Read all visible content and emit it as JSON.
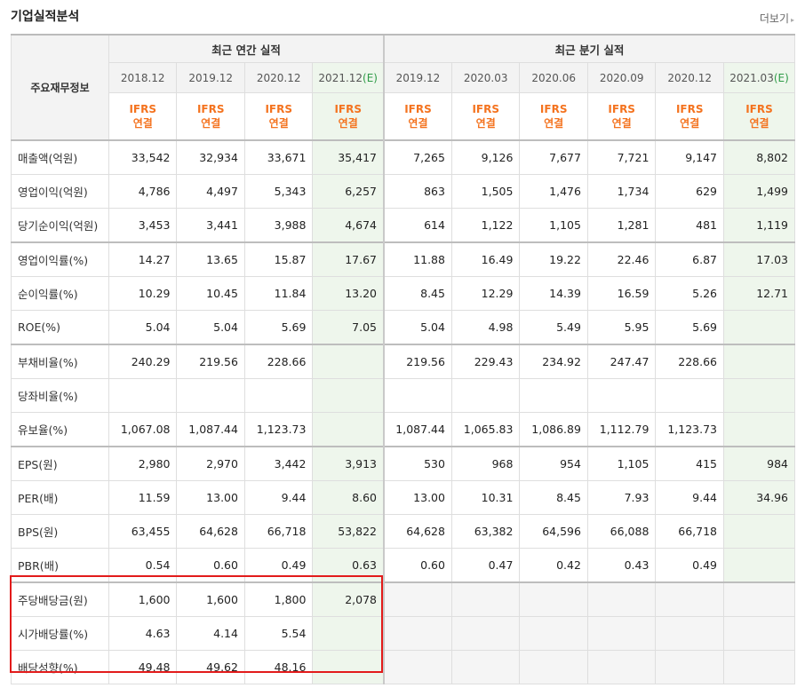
{
  "section_title": "기업실적분석",
  "more_link": "더보기",
  "more_arrow": "▸",
  "header": {
    "row_label": "주요재무정보",
    "annual_group": "최근 연간 실적",
    "quarterly_group": "최근 분기 실적",
    "annual_periods": [
      "2018.12",
      "2019.12",
      "2020.12",
      "2021.12"
    ],
    "quarterly_periods": [
      "2019.12",
      "2020.03",
      "2020.06",
      "2020.09",
      "2020.12",
      "2021.03"
    ],
    "estimate_mark": "(E)",
    "ifrs_top": "IFRS",
    "ifrs_bottom": "연결"
  },
  "rows": [
    {
      "label": "매출액(억원)",
      "annual": [
        "33,542",
        "32,934",
        "33,671",
        "35,417"
      ],
      "quarterly": [
        "7,265",
        "9,126",
        "7,677",
        "7,721",
        "9,147",
        "8,802"
      ]
    },
    {
      "label": "영업이익(억원)",
      "annual": [
        "4,786",
        "4,497",
        "5,343",
        "6,257"
      ],
      "quarterly": [
        "863",
        "1,505",
        "1,476",
        "1,734",
        "629",
        "1,499"
      ]
    },
    {
      "label": "당기순이익(억원)",
      "annual": [
        "3,453",
        "3,441",
        "3,988",
        "4,674"
      ],
      "quarterly": [
        "614",
        "1,122",
        "1,105",
        "1,281",
        "481",
        "1,119"
      ]
    },
    {
      "label": "영업이익률(%)",
      "annual": [
        "14.27",
        "13.65",
        "15.87",
        "17.67"
      ],
      "quarterly": [
        "11.88",
        "16.49",
        "19.22",
        "22.46",
        "6.87",
        "17.03"
      ]
    },
    {
      "label": "순이익률(%)",
      "annual": [
        "10.29",
        "10.45",
        "11.84",
        "13.20"
      ],
      "quarterly": [
        "8.45",
        "12.29",
        "14.39",
        "16.59",
        "5.26",
        "12.71"
      ]
    },
    {
      "label": "ROE(%)",
      "annual": [
        "5.04",
        "5.04",
        "5.69",
        "7.05"
      ],
      "quarterly": [
        "5.04",
        "4.98",
        "5.49",
        "5.95",
        "5.69",
        ""
      ]
    },
    {
      "label": "부채비율(%)",
      "annual": [
        "240.29",
        "219.56",
        "228.66",
        ""
      ],
      "quarterly": [
        "219.56",
        "229.43",
        "234.92",
        "247.47",
        "228.66",
        ""
      ]
    },
    {
      "label": "당좌비율(%)",
      "annual": [
        "",
        "",
        "",
        ""
      ],
      "quarterly": [
        "",
        "",
        "",
        "",
        "",
        ""
      ]
    },
    {
      "label": "유보율(%)",
      "annual": [
        "1,067.08",
        "1,087.44",
        "1,123.73",
        ""
      ],
      "quarterly": [
        "1,087.44",
        "1,065.83",
        "1,086.89",
        "1,112.79",
        "1,123.73",
        ""
      ]
    },
    {
      "label": "EPS(원)",
      "annual": [
        "2,980",
        "2,970",
        "3,442",
        "3,913"
      ],
      "quarterly": [
        "530",
        "968",
        "954",
        "1,105",
        "415",
        "984"
      ]
    },
    {
      "label": "PER(배)",
      "annual": [
        "11.59",
        "13.00",
        "9.44",
        "8.60"
      ],
      "quarterly": [
        "13.00",
        "10.31",
        "8.45",
        "7.93",
        "9.44",
        "34.96"
      ]
    },
    {
      "label": "BPS(원)",
      "annual": [
        "63,455",
        "64,628",
        "66,718",
        "53,822"
      ],
      "quarterly": [
        "64,628",
        "63,382",
        "64,596",
        "66,088",
        "66,718",
        ""
      ]
    },
    {
      "label": "PBR(배)",
      "annual": [
        "0.54",
        "0.60",
        "0.49",
        "0.63"
      ],
      "quarterly": [
        "0.60",
        "0.47",
        "0.42",
        "0.43",
        "0.49",
        ""
      ]
    },
    {
      "label": "주당배당금(원)",
      "annual": [
        "1,600",
        "1,600",
        "1,800",
        "2,078"
      ],
      "quarterly": [
        "",
        "",
        "",
        "",
        "",
        ""
      ]
    },
    {
      "label": "시가배당률(%)",
      "annual": [
        "4.63",
        "4.14",
        "5.54",
        ""
      ],
      "quarterly": [
        "",
        "",
        "",
        "",
        "",
        ""
      ]
    },
    {
      "label": "배당성향(%)",
      "annual": [
        "49.48",
        "49.62",
        "48.16",
        ""
      ],
      "quarterly": [
        "",
        "",
        "",
        "",
        "",
        ""
      ]
    }
  ],
  "highlight_color": "#e21b1b"
}
